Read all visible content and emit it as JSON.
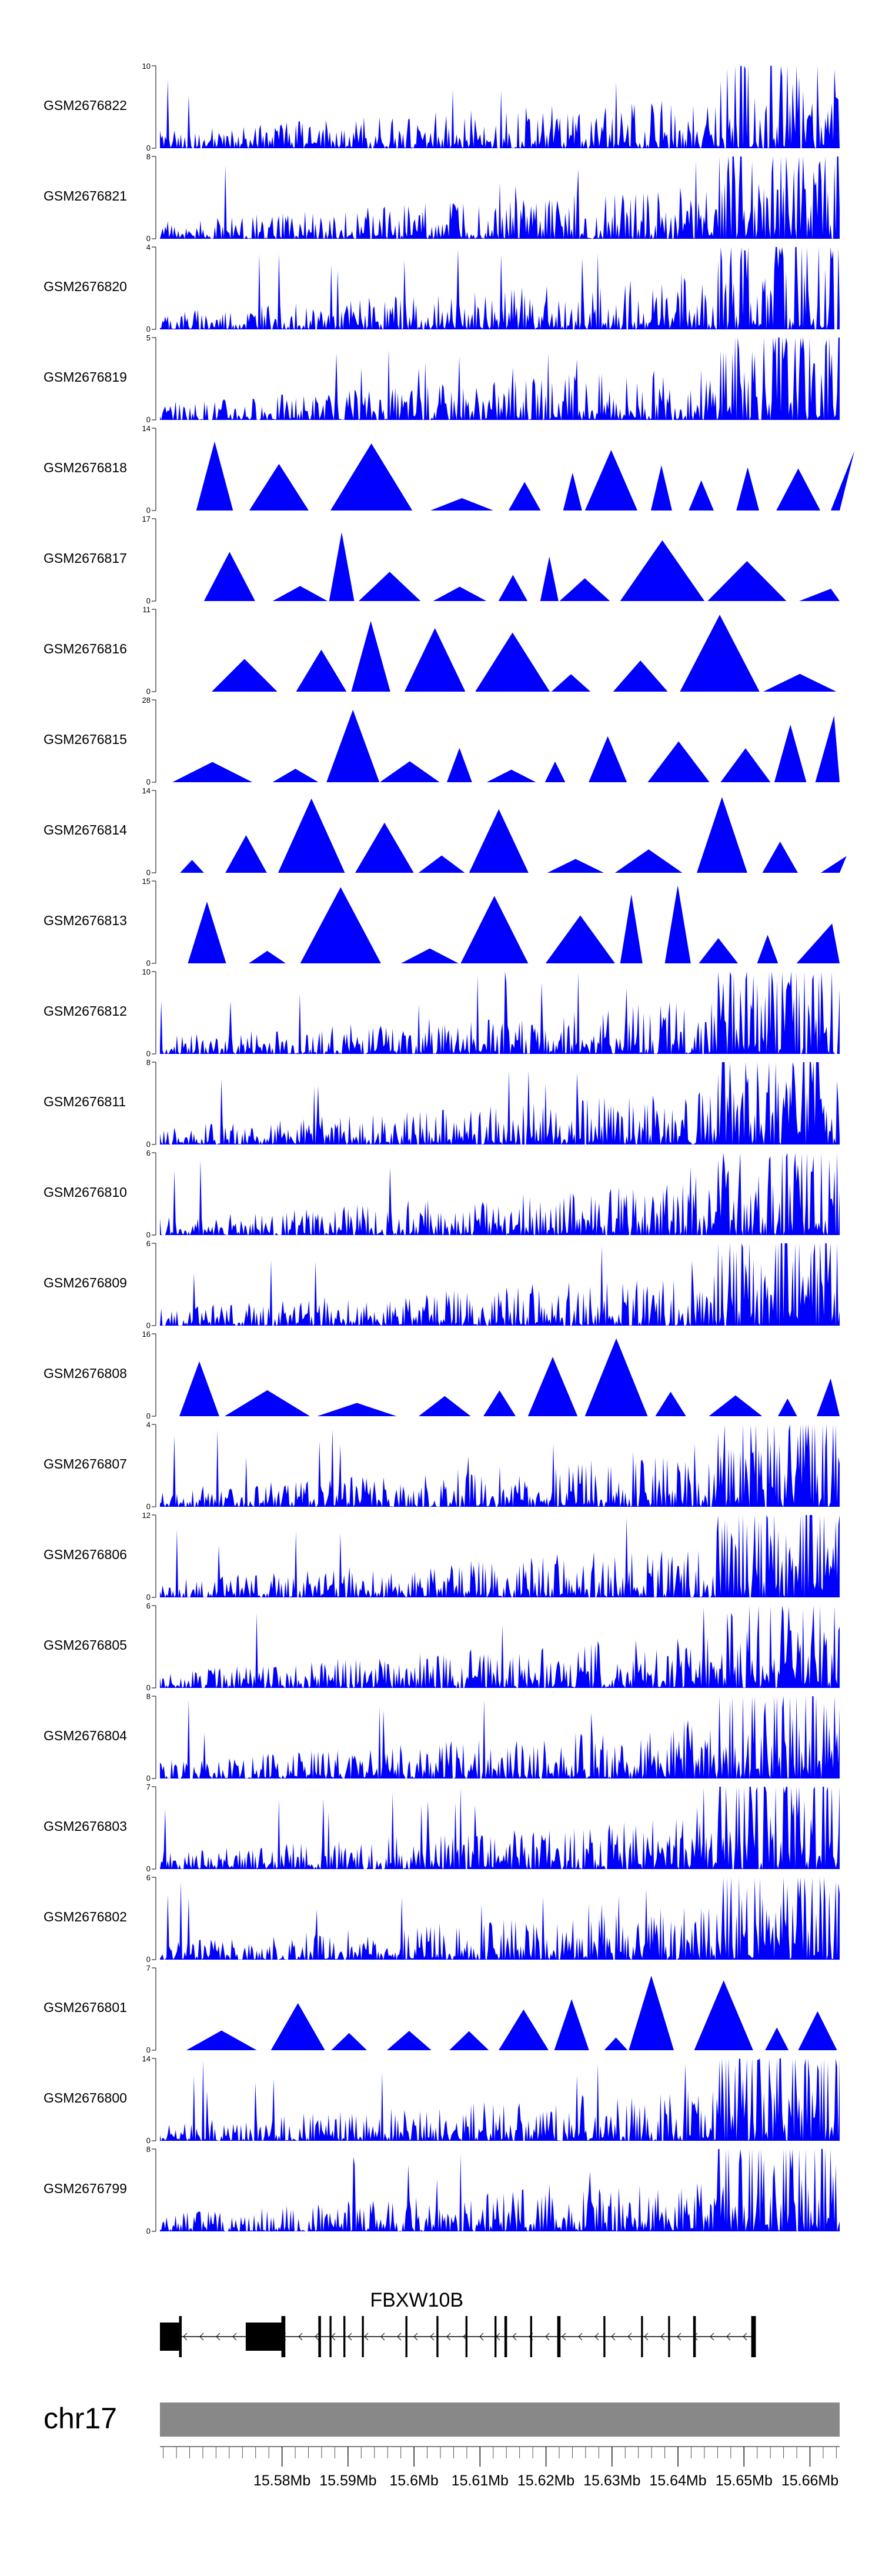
{
  "chart_data": {
    "type": "area",
    "region": {
      "chromosome": "chr17",
      "start_mb": 15.5615,
      "end_mb": 15.6645
    },
    "colors": {
      "signal": "#0000ff",
      "ideogram": "#888888",
      "gene": "#000000",
      "axis": "#000000"
    },
    "tracks": [
      {
        "name": "GSM2676822",
        "ymax": "10",
        "ymin": "0",
        "pattern": "dense",
        "max_value": 10,
        "seed": 22
      },
      {
        "name": "GSM2676821",
        "ymax": "8",
        "ymin": "0",
        "pattern": "dense",
        "max_value": 8,
        "seed": 21
      },
      {
        "name": "GSM2676820",
        "ymax": "4",
        "ymin": "0",
        "pattern": "dense",
        "max_value": 4,
        "seed": 20
      },
      {
        "name": "GSM2676819",
        "ymax": "5",
        "ymin": "0",
        "pattern": "dense",
        "max_value": 5,
        "seed": 19
      },
      {
        "name": "GSM2676818",
        "ymax": "14",
        "ymin": "0",
        "pattern": "sparse",
        "max_value": 14,
        "seed": 18
      },
      {
        "name": "GSM2676817",
        "ymax": "17",
        "ymin": "0",
        "pattern": "sparse",
        "max_value": 17,
        "seed": 17
      },
      {
        "name": "GSM2676816",
        "ymax": "11",
        "ymin": "0",
        "pattern": "sparse",
        "max_value": 11,
        "seed": 16
      },
      {
        "name": "GSM2676815",
        "ymax": "28",
        "ymin": "0",
        "pattern": "sparse",
        "max_value": 28,
        "seed": 15
      },
      {
        "name": "GSM2676814",
        "ymax": "14",
        "ymin": "0",
        "pattern": "sparse",
        "max_value": 14,
        "seed": 14
      },
      {
        "name": "GSM2676813",
        "ymax": "15",
        "ymin": "0",
        "pattern": "sparse",
        "max_value": 15,
        "seed": 13
      },
      {
        "name": "GSM2676812",
        "ymax": "10",
        "ymin": "0",
        "pattern": "dense",
        "max_value": 10,
        "seed": 12
      },
      {
        "name": "GSM2676811",
        "ymax": "8",
        "ymin": "0",
        "pattern": "dense",
        "max_value": 8,
        "seed": 11
      },
      {
        "name": "GSM2676810",
        "ymax": "6",
        "ymin": "0",
        "pattern": "dense",
        "max_value": 6,
        "seed": 10
      },
      {
        "name": "GSM2676809",
        "ymax": "6",
        "ymin": "0",
        "pattern": "dense",
        "max_value": 6,
        "seed": 9
      },
      {
        "name": "GSM2676808",
        "ymax": "16",
        "ymin": "0",
        "pattern": "sparse",
        "max_value": 16,
        "seed": 8
      },
      {
        "name": "GSM2676807",
        "ymax": "4",
        "ymin": "0",
        "pattern": "dense",
        "max_value": 4,
        "seed": 7
      },
      {
        "name": "GSM2676806",
        "ymax": "12",
        "ymin": "0",
        "pattern": "dense",
        "max_value": 12,
        "seed": 6
      },
      {
        "name": "GSM2676805",
        "ymax": "6",
        "ymin": "0",
        "pattern": "dense",
        "max_value": 6,
        "seed": 5
      },
      {
        "name": "GSM2676804",
        "ymax": "8",
        "ymin": "0",
        "pattern": "dense",
        "max_value": 8,
        "seed": 4
      },
      {
        "name": "GSM2676803",
        "ymax": "7",
        "ymin": "0",
        "pattern": "dense",
        "max_value": 7,
        "seed": 3
      },
      {
        "name": "GSM2676802",
        "ymax": "6",
        "ymin": "0",
        "pattern": "dense",
        "max_value": 6,
        "seed": 2
      },
      {
        "name": "GSM2676801",
        "ymax": "7",
        "ymin": "0",
        "pattern": "sparse",
        "max_value": 7,
        "seed": 1
      },
      {
        "name": "GSM2676800",
        "ymax": "14",
        "ymin": "0",
        "pattern": "dense",
        "max_value": 14,
        "seed": 0
      },
      {
        "name": "GSM2676799",
        "ymax": "8",
        "ymin": "0",
        "pattern": "dense",
        "max_value": 8,
        "seed": 99
      }
    ],
    "gene": {
      "name": "FBXW10B",
      "strand": "-",
      "start_mb": 15.5615,
      "end_mb": 15.6518,
      "exons_mb": [
        [
          15.5615,
          15.5644
        ],
        [
          15.5644,
          15.5648
        ],
        [
          15.5745,
          15.5799
        ],
        [
          15.5799,
          15.5805
        ],
        [
          15.5855,
          15.5859
        ],
        [
          15.5872,
          15.5875
        ],
        [
          15.5893,
          15.5896
        ],
        [
          15.5921,
          15.5924
        ],
        [
          15.5987,
          15.599
        ],
        [
          15.6034,
          15.6037
        ],
        [
          15.6078,
          15.6081
        ],
        [
          15.6122,
          15.6125
        ],
        [
          15.6137,
          15.6141
        ],
        [
          15.6176,
          15.6179
        ],
        [
          15.6217,
          15.6222
        ],
        [
          15.6287,
          15.629
        ],
        [
          15.6344,
          15.6347
        ],
        [
          15.6385,
          15.6388
        ],
        [
          15.6423,
          15.6427
        ],
        [
          15.6511,
          15.6518
        ]
      ]
    },
    "x_axis": {
      "ticks_mb": [
        15.58,
        15.59,
        15.6,
        15.61,
        15.62,
        15.63,
        15.64,
        15.65,
        15.66
      ],
      "tick_labels": [
        "15.58Mb",
        "15.59Mb",
        "15.6Mb",
        "15.61Mb",
        "15.62Mb",
        "15.63Mb",
        "15.64Mb",
        "15.65Mb",
        "15.66Mb"
      ],
      "minor_tick_step_mb": 0.002
    }
  }
}
